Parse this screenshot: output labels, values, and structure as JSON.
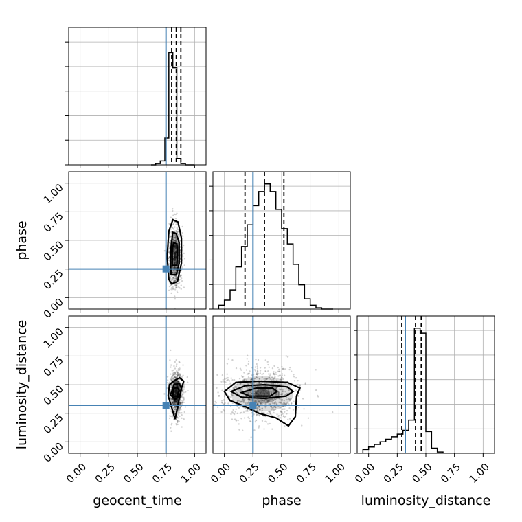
{
  "chart_data": {
    "type": "corner",
    "parameters": [
      "geocent_time",
      "phase",
      "luminosity_distance"
    ],
    "axis_range": [
      -0.1,
      1.1
    ],
    "ticks": [
      0.0,
      0.25,
      0.5,
      0.75,
      1.0
    ],
    "tick_labels": [
      "0.00",
      "0.25",
      "0.50",
      "0.75",
      "1.00"
    ],
    "grid": true,
    "colors": {
      "truth": "#4682b4",
      "histogram": "#000000",
      "contour": "#000000",
      "grid": "#b0b0b0"
    },
    "truths": {
      "geocent_time": 0.75,
      "phase": 0.25,
      "luminosity_distance": 0.32
    },
    "quantiles": {
      "geocent_time": [
        0.8,
        0.84,
        0.88
      ],
      "phase": [
        0.18,
        0.35,
        0.52
      ],
      "luminosity_distance": [
        0.29,
        0.41,
        0.46
      ]
    },
    "histograms": {
      "geocent_time": {
        "bin_edges": [
          0.62,
          0.66,
          0.7,
          0.74,
          0.775,
          0.81,
          0.845,
          0.88,
          0.92,
          0.96,
          1.0
        ],
        "counts": [
          0,
          0.01,
          0.03,
          0.21,
          0.88,
          0.76,
          0.05,
          0.01,
          0,
          0
        ]
      },
      "phase": {
        "bin_edges": [
          -0.05,
          0.0,
          0.05,
          0.1,
          0.15,
          0.2,
          0.25,
          0.3,
          0.35,
          0.4,
          0.45,
          0.5,
          0.55,
          0.6,
          0.65,
          0.7,
          0.75,
          0.8,
          0.85,
          0.9,
          0.95
        ],
        "counts": [
          0.03,
          0.07,
          0.15,
          0.33,
          0.49,
          0.66,
          0.81,
          0.92,
          0.98,
          0.92,
          0.78,
          0.63,
          0.51,
          0.35,
          0.19,
          0.08,
          0.03,
          0.01,
          0.0,
          0.0
        ]
      },
      "luminosity_distance": {
        "bin_edges": [
          -0.05,
          0.0,
          0.05,
          0.1,
          0.15,
          0.2,
          0.25,
          0.3,
          0.35,
          0.4,
          0.45,
          0.5,
          0.55,
          0.6,
          0.65
        ],
        "counts": [
          0.03,
          0.05,
          0.07,
          0.09,
          0.11,
          0.13,
          0.15,
          0.18,
          0.26,
          0.98,
          0.94,
          0.17,
          0.04,
          0.01
        ]
      }
    },
    "contours": {
      "phase_vs_geocent_time": [
        [
          [
            0.775,
            0.16
          ],
          [
            0.8,
            0.12
          ],
          [
            0.85,
            0.14
          ],
          [
            0.885,
            0.3
          ],
          [
            0.885,
            0.52
          ],
          [
            0.855,
            0.66
          ],
          [
            0.81,
            0.68
          ],
          [
            0.775,
            0.58
          ],
          [
            0.76,
            0.36
          ]
        ],
        [
          [
            0.795,
            0.2
          ],
          [
            0.84,
            0.2
          ],
          [
            0.865,
            0.3
          ],
          [
            0.865,
            0.48
          ],
          [
            0.84,
            0.56
          ],
          [
            0.81,
            0.57
          ],
          [
            0.795,
            0.45
          ],
          [
            0.79,
            0.3
          ]
        ],
        [
          [
            0.805,
            0.28
          ],
          [
            0.845,
            0.28
          ],
          [
            0.85,
            0.4
          ],
          [
            0.845,
            0.47
          ],
          [
            0.815,
            0.48
          ],
          [
            0.805,
            0.4
          ]
        ]
      ],
      "luminosity_distance_vs_geocent_time": [
        [
          [
            0.77,
            0.4
          ],
          [
            0.8,
            0.3
          ],
          [
            0.83,
            0.2
          ],
          [
            0.85,
            0.3
          ],
          [
            0.88,
            0.45
          ],
          [
            0.905,
            0.53
          ],
          [
            0.87,
            0.56
          ],
          [
            0.83,
            0.54
          ],
          [
            0.78,
            0.5
          ]
        ],
        [
          [
            0.79,
            0.41
          ],
          [
            0.83,
            0.37
          ],
          [
            0.875,
            0.41
          ],
          [
            0.885,
            0.47
          ],
          [
            0.865,
            0.51
          ],
          [
            0.82,
            0.5
          ]
        ],
        [
          [
            0.81,
            0.4
          ],
          [
            0.85,
            0.4
          ],
          [
            0.865,
            0.45
          ],
          [
            0.845,
            0.48
          ],
          [
            0.815,
            0.46
          ]
        ]
      ],
      "luminosity_distance_vs_phase": [
        [
          [
            0.0,
            0.44
          ],
          [
            0.1,
            0.52
          ],
          [
            0.3,
            0.53
          ],
          [
            0.55,
            0.52
          ],
          [
            0.66,
            0.47
          ],
          [
            0.63,
            0.4
          ],
          [
            0.62,
            0.22
          ],
          [
            0.56,
            0.14
          ],
          [
            0.45,
            0.21
          ],
          [
            0.3,
            0.25
          ],
          [
            0.18,
            0.31
          ],
          [
            0.05,
            0.36
          ]
        ],
        [
          [
            0.06,
            0.44
          ],
          [
            0.18,
            0.49
          ],
          [
            0.35,
            0.5
          ],
          [
            0.55,
            0.48
          ],
          [
            0.6,
            0.44
          ],
          [
            0.54,
            0.4
          ],
          [
            0.35,
            0.38
          ],
          [
            0.15,
            0.39
          ]
        ],
        [
          [
            0.15,
            0.43
          ],
          [
            0.28,
            0.47
          ],
          [
            0.42,
            0.47
          ],
          [
            0.46,
            0.44
          ],
          [
            0.4,
            0.4
          ],
          [
            0.22,
            0.4
          ]
        ]
      ]
    },
    "scatter_centers": {
      "phase_vs_geocent_time": [
        0.83,
        0.36
      ],
      "luminosity_distance_vs_geocent_time": [
        0.84,
        0.42
      ],
      "luminosity_distance_vs_phase": [
        0.33,
        0.42
      ]
    }
  }
}
